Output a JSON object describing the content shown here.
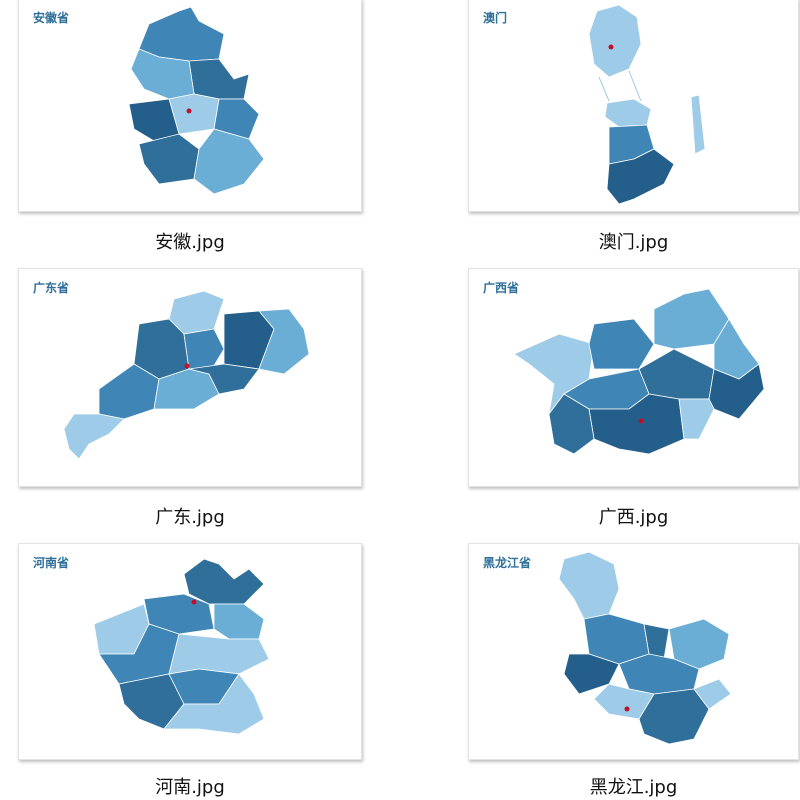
{
  "files": [
    {
      "title": "安徽省",
      "filename": "安徽.jpg"
    },
    {
      "title": "澳门",
      "filename": "澳门.jpg"
    },
    {
      "title": "广东省",
      "filename": "广东.jpg"
    },
    {
      "title": "广西省",
      "filename": "广西.jpg"
    },
    {
      "title": "河南省",
      "filename": "河南.jpg"
    },
    {
      "title": "黑龙江省",
      "filename": "黑龙江.jpg"
    }
  ]
}
